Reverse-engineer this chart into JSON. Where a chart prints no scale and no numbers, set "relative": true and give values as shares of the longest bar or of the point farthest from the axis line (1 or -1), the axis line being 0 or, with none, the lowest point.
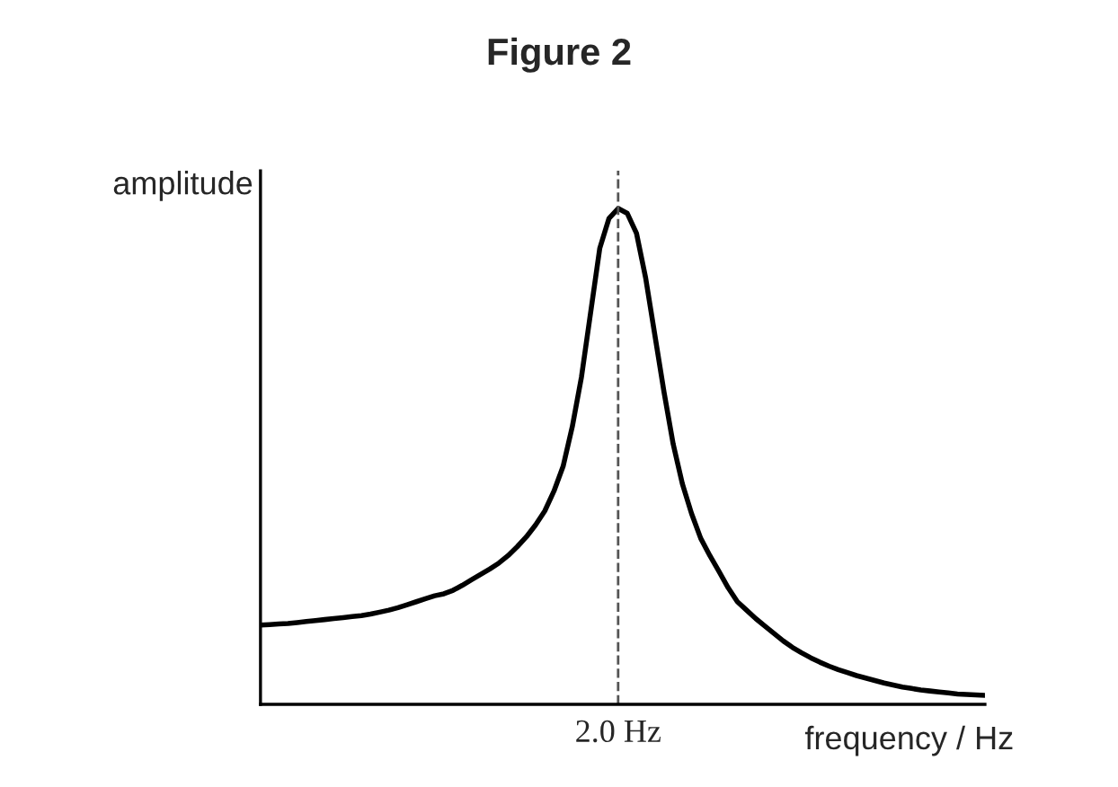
{
  "chart_data": {
    "type": "line",
    "title": "Figure 2",
    "xlabel": "frequency / Hz",
    "ylabel": "amplitude",
    "relative": true,
    "categories": [
      null,
      null,
      null,
      null,
      null,
      null,
      null,
      null,
      null,
      null,
      null,
      null,
      null,
      null,
      null,
      null,
      null,
      null,
      null,
      null,
      null,
      null,
      null,
      null,
      null,
      null,
      null,
      null,
      null,
      null,
      null,
      null,
      null,
      null,
      null,
      null,
      null,
      null,
      null,
      null,
      null,
      null,
      null,
      null,
      null,
      null,
      null,
      null,
      null,
      null,
      null,
      null,
      null,
      null,
      null,
      null,
      null,
      null,
      null,
      null,
      null,
      null,
      null,
      null,
      null,
      null,
      null,
      null,
      null,
      null,
      null,
      null,
      null,
      null,
      null,
      null,
      null,
      null,
      null,
      null
    ],
    "annotations": [
      "2.0 Hz"
    ],
    "series": [
      {
        "color": "#000000",
        "values": [
          0.16,
          0.161,
          0.162,
          0.163,
          0.165,
          0.167,
          0.169,
          0.171,
          0.173,
          0.175,
          0.177,
          0.179,
          0.182,
          0.186,
          0.19,
          0.195,
          0.201,
          0.207,
          0.213,
          0.219,
          0.223,
          0.23,
          0.24,
          0.251,
          0.262,
          0.273,
          0.285,
          0.3,
          0.318,
          0.338,
          0.362,
          0.39,
          0.43,
          0.48,
          0.56,
          0.66,
          0.79,
          0.92,
          0.98,
          1.0,
          0.99,
          0.95,
          0.86,
          0.745,
          0.63,
          0.525,
          0.445,
          0.385,
          0.335,
          0.3,
          0.268,
          0.235,
          0.207,
          0.19,
          0.173,
          0.158,
          0.143,
          0.128,
          0.115,
          0.104,
          0.094,
          0.085,
          0.077,
          0.07,
          0.064,
          0.058,
          0.053,
          0.048,
          0.043,
          0.039,
          0.035,
          0.032,
          0.029,
          0.027,
          0.025,
          0.023,
          0.021,
          0.02,
          0.019,
          0.018
        ]
      }
    ],
    "marker": "none",
    "line_style": "solid"
  }
}
